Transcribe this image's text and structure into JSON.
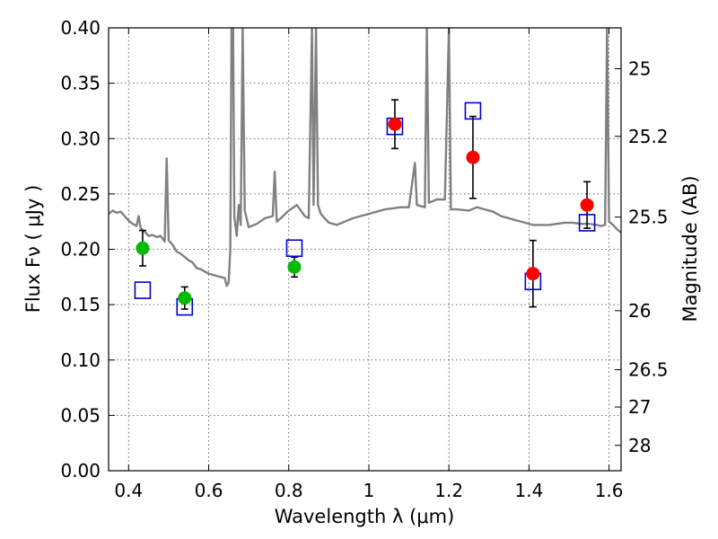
{
  "chart_data": {
    "type": "scatter",
    "xlabel": "Wavelength  λ (μm)",
    "ylabel": "Flux  Fν  ( μJy )",
    "y2label": "Magnitude (AB)",
    "xlim": [
      0.35,
      1.63
    ],
    "ylim": [
      0.0,
      0.4
    ],
    "grid": true,
    "x_ticks": [
      0.4,
      0.6,
      0.8,
      1.0,
      1.2,
      1.4,
      1.6
    ],
    "x_tick_labels": [
      "0.4",
      "0.6",
      "0.8",
      "1",
      "1.2",
      "1.4",
      "1.6"
    ],
    "y_ticks": [
      0.0,
      0.05,
      0.1,
      0.15,
      0.2,
      0.25,
      0.3,
      0.35,
      0.4
    ],
    "y_tick_labels": [
      "0.00",
      "0.05",
      "0.10",
      "0.15",
      "0.20",
      "0.25",
      "0.30",
      "0.35",
      "0.40"
    ],
    "y2_ticks": [
      "25",
      "25.2",
      "25.5",
      "26",
      "26.5",
      "27",
      "28"
    ],
    "colors": {
      "green_points": "#00bb00",
      "red_points": "#ff0000",
      "model_squares": "#0000cc",
      "spectrum": "#808080",
      "error_bars": "#000000"
    },
    "series": [
      {
        "marker": "green-circle",
        "points": [
          {
            "x": 0.435,
            "y": 0.201,
            "err": 0.016
          },
          {
            "x": 0.54,
            "y": 0.156,
            "err": 0.01
          },
          {
            "x": 0.814,
            "y": 0.184,
            "err": 0.009
          }
        ]
      },
      {
        "marker": "red-circle",
        "points": [
          {
            "x": 1.065,
            "y": 0.313,
            "err": 0.022
          },
          {
            "x": 1.26,
            "y": 0.283,
            "err": 0.037
          },
          {
            "x": 1.41,
            "y": 0.178,
            "err": 0.03
          },
          {
            "x": 1.545,
            "y": 0.24,
            "err": 0.021
          }
        ]
      },
      {
        "marker": "blue-open-square",
        "points": [
          {
            "x": 0.435,
            "y": 0.163
          },
          {
            "x": 0.54,
            "y": 0.148
          },
          {
            "x": 0.814,
            "y": 0.201
          },
          {
            "x": 1.065,
            "y": 0.311
          },
          {
            "x": 1.26,
            "y": 0.325
          },
          {
            "x": 1.41,
            "y": 0.171
          },
          {
            "x": 1.545,
            "y": 0.224
          }
        ]
      },
      {
        "marker": "gray-line",
        "points": [
          [
            0.35,
            0.232
          ],
          [
            0.36,
            0.235
          ],
          [
            0.37,
            0.233
          ],
          [
            0.38,
            0.234
          ],
          [
            0.39,
            0.23
          ],
          [
            0.4,
            0.226
          ],
          [
            0.41,
            0.223
          ],
          [
            0.42,
            0.221
          ],
          [
            0.425,
            0.23
          ],
          [
            0.43,
            0.219
          ],
          [
            0.44,
            0.216
          ],
          [
            0.45,
            0.212
          ],
          [
            0.46,
            0.213
          ],
          [
            0.47,
            0.211
          ],
          [
            0.48,
            0.212
          ],
          [
            0.49,
            0.207
          ],
          [
            0.495,
            0.282
          ],
          [
            0.5,
            0.208
          ],
          [
            0.51,
            0.204
          ],
          [
            0.52,
            0.198
          ],
          [
            0.53,
            0.196
          ],
          [
            0.54,
            0.193
          ],
          [
            0.55,
            0.19
          ],
          [
            0.56,
            0.188
          ],
          [
            0.57,
            0.183
          ],
          [
            0.58,
            0.182
          ],
          [
            0.59,
            0.18
          ],
          [
            0.6,
            0.178
          ],
          [
            0.61,
            0.177
          ],
          [
            0.62,
            0.176
          ],
          [
            0.63,
            0.175
          ],
          [
            0.64,
            0.174
          ],
          [
            0.645,
            0.167
          ],
          [
            0.65,
            0.17
          ],
          [
            0.654,
            0.2
          ],
          [
            0.657,
            0.4
          ],
          [
            0.661,
            0.4
          ],
          [
            0.664,
            0.23
          ],
          [
            0.67,
            0.212
          ],
          [
            0.675,
            0.24
          ],
          [
            0.68,
            0.222
          ],
          [
            0.685,
            0.4
          ],
          [
            0.69,
            0.235
          ],
          [
            0.7,
            0.22
          ],
          [
            0.72,
            0.223
          ],
          [
            0.74,
            0.228
          ],
          [
            0.76,
            0.23
          ],
          [
            0.765,
            0.27
          ],
          [
            0.77,
            0.225
          ],
          [
            0.78,
            0.228
          ],
          [
            0.8,
            0.235
          ],
          [
            0.82,
            0.24
          ],
          [
            0.84,
            0.23
          ],
          [
            0.85,
            0.228
          ],
          [
            0.858,
            0.4
          ],
          [
            0.862,
            0.24
          ],
          [
            0.868,
            0.4
          ],
          [
            0.873,
            0.24
          ],
          [
            0.88,
            0.232
          ],
          [
            0.9,
            0.224
          ],
          [
            0.92,
            0.222
          ],
          [
            0.94,
            0.225
          ],
          [
            0.96,
            0.228
          ],
          [
            0.98,
            0.23
          ],
          [
            1.0,
            0.232
          ],
          [
            1.02,
            0.234
          ],
          [
            1.04,
            0.236
          ],
          [
            1.06,
            0.237
          ],
          [
            1.08,
            0.238
          ],
          [
            1.1,
            0.238
          ],
          [
            1.115,
            0.278
          ],
          [
            1.12,
            0.24
          ],
          [
            1.14,
            0.238
          ],
          [
            1.145,
            0.4
          ],
          [
            1.15,
            0.242
          ],
          [
            1.17,
            0.245
          ],
          [
            1.19,
            0.245
          ],
          [
            1.2,
            0.4
          ],
          [
            1.205,
            0.236
          ],
          [
            1.22,
            0.236
          ],
          [
            1.25,
            0.235
          ],
          [
            1.27,
            0.238
          ],
          [
            1.29,
            0.236
          ],
          [
            1.31,
            0.234
          ],
          [
            1.33,
            0.23
          ],
          [
            1.35,
            0.228
          ],
          [
            1.37,
            0.226
          ],
          [
            1.39,
            0.224
          ],
          [
            1.41,
            0.222
          ],
          [
            1.43,
            0.222
          ],
          [
            1.45,
            0.222
          ],
          [
            1.47,
            0.223
          ],
          [
            1.49,
            0.224
          ],
          [
            1.51,
            0.224
          ],
          [
            1.53,
            0.223
          ],
          [
            1.55,
            0.223
          ],
          [
            1.57,
            0.222
          ],
          [
            1.58,
            0.221
          ],
          [
            1.59,
            0.222
          ],
          [
            1.595,
            0.4
          ],
          [
            1.6,
            0.225
          ],
          [
            1.61,
            0.222
          ],
          [
            1.62,
            0.218
          ],
          [
            1.63,
            0.215
          ]
        ]
      }
    ]
  }
}
